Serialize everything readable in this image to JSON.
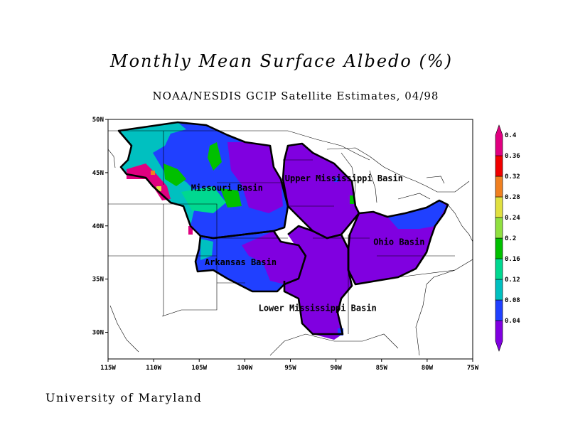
{
  "title": "Monthly Mean Surface Albedo (%)",
  "subtitle": "NOAA/NESDIS GCIP Satellite Estimates, 04/98",
  "footer": "University of Maryland",
  "map": {
    "lon_range": [
      -115,
      -75
    ],
    "lat_range": [
      27.5,
      50
    ],
    "lon_ticks": [
      "115W",
      "110W",
      "105W",
      "100W",
      "95W",
      "90W",
      "85W",
      "80W",
      "75W"
    ],
    "lat_ticks": [
      "30N",
      "35N",
      "40N",
      "45N",
      "50N"
    ],
    "basins": [
      {
        "name": "Missouri Basin",
        "lon": -105.9,
        "lat": 43.3
      },
      {
        "name": "Upper Mississippi Basin",
        "lon": -95.6,
        "lat": 44.2
      },
      {
        "name": "Ohio Basin",
        "lon": -85.9,
        "lat": 38.2
      },
      {
        "name": "Arkansas Basin",
        "lon": -104.4,
        "lat": 36.3
      },
      {
        "name": "Lower Mississippi Basin",
        "lon": -98.5,
        "lat": 32.0
      }
    ]
  },
  "colorbar": {
    "labels": [
      "0.04",
      "0.08",
      "0.12",
      "0.16",
      "0.2",
      "0.24",
      "0.28",
      "0.32",
      "0.36",
      "0.4"
    ],
    "colors": {
      "violet": "#8000e0",
      "blue": "#2040ff",
      "cyan": "#00c0c0",
      "teal": "#00d890",
      "green": "#00c000",
      "yellow_green": "#90e040",
      "yellow": "#e0e040",
      "orange": "#f08020",
      "red": "#f00000",
      "magenta": "#e00080"
    }
  }
}
